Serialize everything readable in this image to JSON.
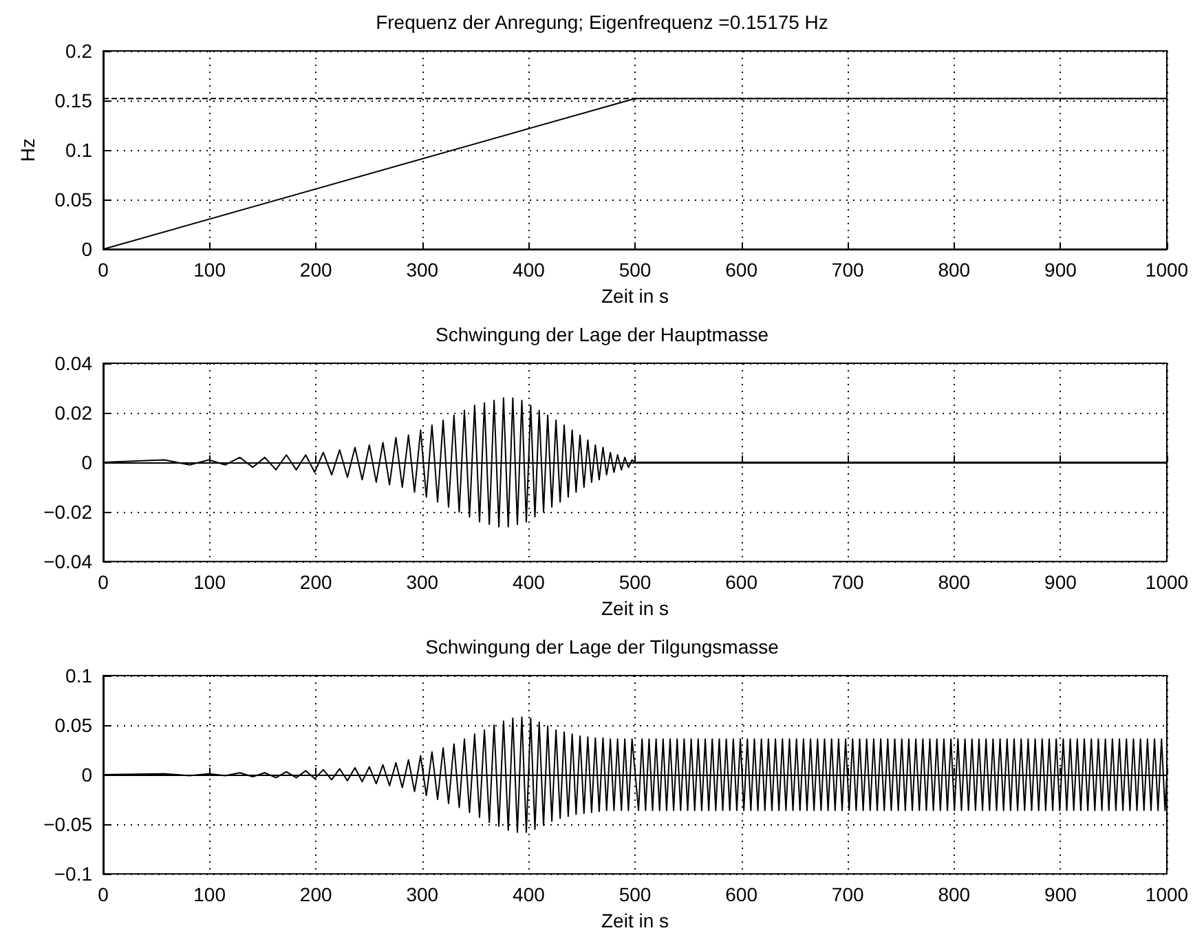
{
  "chart_data": [
    {
      "type": "line",
      "title": "Frequenz der Anregung; Eigenfrequenz =0.15175 Hz",
      "xlabel": "Zeit in s",
      "ylabel": "Hz",
      "xlim": [
        0,
        1000
      ],
      "xticks": [
        0,
        100,
        200,
        300,
        400,
        500,
        600,
        700,
        800,
        900,
        1000
      ],
      "ylim": [
        0,
        0.2
      ],
      "yticks": [
        0,
        0.05,
        0.1,
        0.15,
        0.2
      ],
      "grid": true,
      "marker": "none",
      "ref_lines": [
        {
          "axis": "y",
          "value": 0.152,
          "line_style": "dashed",
          "color": "#000000"
        }
      ],
      "series": [
        {
          "color": "#000000",
          "x": [
            0,
            500,
            1000
          ],
          "values": [
            0,
            0.152,
            0.152
          ]
        }
      ]
    },
    {
      "type": "line",
      "title": "Schwingung der Lage der Hauptmasse",
      "xlabel": "Zeit in s",
      "xlim": [
        0,
        1000
      ],
      "xticks": [
        0,
        100,
        200,
        300,
        400,
        500,
        600,
        700,
        800,
        900,
        1000
      ],
      "ylim": [
        -0.04,
        0.04
      ],
      "yticks": [
        {
          "value": -0.04,
          "label": "−0.04"
        },
        {
          "value": -0.02,
          "label": "−0.02"
        },
        0,
        0.02,
        0.04
      ],
      "grid": true,
      "marker": "none",
      "series": [
        {
          "color": "#000000",
          "x": [
            0,
            57.4,
            81.2,
            99.4,
            114.8,
            128.4,
            140.6,
            151.9,
            162.4,
            172.2,
            181.5,
            190.4,
            198.8,
            206.9,
            214.8,
            222.3,
            229.6,
            236.7,
            243.5,
            250.2,
            256.7,
            263,
            269.2,
            275.2,
            281.2,
            287,
            292.7,
            298.4,
            303.8,
            309.1,
            314.4,
            319.6,
            324.7,
            329.8,
            334.7,
            339.6,
            344.4,
            349.2,
            353.8,
            358.4,
            363,
            367.5,
            372,
            376.4,
            380.8,
            385.1,
            389.4,
            393.6,
            397.8,
            401.9,
            405.9,
            409.9,
            414,
            417.9,
            421.8,
            425.7,
            429.6,
            433.4,
            437.2,
            440.9,
            444.6,
            448.3,
            452,
            455.6,
            459.2,
            462.7,
            466.3,
            469.9,
            473.3,
            476.8,
            480.2,
            483.6,
            487.2,
            490.4,
            493.8,
            497.2,
            500,
            1000
          ],
          "values": [
            0,
            0.001,
            -0.001,
            0.001,
            -0.001,
            0.002,
            -0.002,
            0.002,
            -0.003,
            0.003,
            -0.003,
            0.003,
            -0.004,
            0.004,
            -0.005,
            0.005,
            -0.006,
            0.006,
            -0.007,
            0.007,
            -0.008,
            0.008,
            -0.009,
            0.01,
            -0.01,
            0.011,
            -0.012,
            0.013,
            -0.014,
            0.015,
            -0.016,
            0.017,
            -0.018,
            0.019,
            -0.02,
            0.021,
            -0.022,
            0.023,
            -0.024,
            0.024,
            -0.025,
            0.025,
            -0.026,
            0.026,
            -0.026,
            0.026,
            -0.025,
            0.025,
            -0.024,
            0.023,
            -0.022,
            0.021,
            -0.02,
            0.019,
            -0.018,
            0.017,
            -0.016,
            0.015,
            -0.014,
            0.013,
            -0.012,
            0.011,
            -0.01,
            0.009,
            -0.008,
            0.007,
            -0.007,
            0.006,
            -0.005,
            0.004,
            -0.004,
            0.003,
            -0.003,
            0.002,
            -0.002,
            0.001,
            0,
            0
          ]
        }
      ]
    },
    {
      "type": "line",
      "title": "Schwingung der Lage der Tilgungsmasse",
      "xlabel": "Zeit in s",
      "xlim": [
        0,
        1000
      ],
      "xticks": [
        0,
        100,
        200,
        300,
        400,
        500,
        600,
        700,
        800,
        900,
        1000
      ],
      "ylim": [
        -0.1,
        0.1
      ],
      "yticks": [
        {
          "value": -0.1,
          "label": "−0.1"
        },
        {
          "value": -0.05,
          "label": "−0.05"
        },
        0,
        0.05,
        0.1
      ],
      "grid": true,
      "marker": "none",
      "series": [
        {
          "color": "#000000",
          "x": [
            0,
            57.4,
            81.2,
            99.4,
            114.8,
            128.4,
            140.6,
            151.9,
            162.4,
            172.2,
            181.5,
            190.4,
            198.8,
            206.9,
            214.8,
            222.3,
            229.6,
            236.7,
            243.5,
            250.2,
            256.7,
            263,
            269.2,
            275.2,
            281.2,
            287,
            292.7,
            298.4,
            303.8,
            309.1,
            314.4,
            319.6,
            324.7,
            329.8,
            334.7,
            339.6,
            344.4,
            349.2,
            353.8,
            358.4,
            363,
            367.5,
            372,
            376.4,
            380.8,
            385.1,
            389.4,
            393.6,
            397.8,
            401.9,
            405.9,
            409.9,
            414,
            417.9,
            421.8,
            425.7,
            429.6,
            433.4,
            437.2,
            440.9,
            444.6,
            448.3,
            452,
            455.6,
            459.2,
            462.7,
            466.3,
            469.9,
            473.3,
            476.8,
            480.2,
            483.6,
            487.2,
            490.4,
            493.8,
            497.2,
            503.3,
            506.6,
            509.9,
            513.2,
            516.5,
            519.8,
            523.1,
            526.4,
            529.7,
            533,
            536.3,
            539.6,
            542.9,
            546.2,
            549.5,
            552.8,
            556.1,
            559.4,
            562.7,
            566,
            569.3,
            572.6,
            575.9,
            579.2,
            582.5,
            585.8,
            589.1,
            592.4,
            595.7,
            599,
            602.3,
            605.6,
            608.9,
            612.2,
            615.5,
            618.8,
            622.1,
            625.4,
            628.7,
            632,
            635.3,
            638.6,
            641.9,
            645.2,
            648.5,
            651.8,
            655.1,
            658.4,
            661.7,
            665,
            668.3,
            671.6,
            674.9,
            678.2,
            681.5,
            684.8,
            688.1,
            691.4,
            694.7,
            698,
            701.3,
            704.6,
            707.9,
            711.2,
            714.5,
            717.8,
            721.1,
            724.4,
            727.7,
            731,
            734.3,
            737.6,
            740.9,
            744.2,
            747.5,
            750.8,
            754.1,
            757.4,
            760.7,
            764,
            767.3,
            770.6,
            773.9,
            777.2,
            780.5,
            783.8,
            787.1,
            790.4,
            793.7,
            797,
            800.3,
            803.6,
            806.9,
            810.2,
            813.5,
            816.8,
            820.1,
            823.4,
            826.7,
            830,
            833.3,
            836.6,
            839.9,
            843.2,
            846.5,
            849.8,
            853.1,
            856.4,
            859.7,
            863,
            866.3,
            869.6,
            872.9,
            876.2,
            879.5,
            882.8,
            886.1,
            889.4,
            892.7,
            896,
            899.3,
            902.6,
            905.9,
            909.2,
            912.5,
            915.8,
            919.1,
            922.4,
            925.7,
            929,
            932.3,
            935.6,
            938.9,
            942.2,
            945.5,
            948.8,
            952.1,
            955.4,
            958.7,
            962,
            965.3,
            968.6,
            971.9,
            975.2,
            978.5,
            981.8,
            985.1,
            988.4,
            991.7,
            995,
            998.3,
            1000
          ],
          "values": [
            0,
            0.001,
            -0.001,
            0.001,
            -0.001,
            0.002,
            -0.002,
            0.002,
            -0.003,
            0.003,
            -0.003,
            0.004,
            -0.004,
            0.005,
            -0.005,
            0.006,
            -0.006,
            0.007,
            -0.007,
            0.008,
            -0.009,
            0.01,
            -0.011,
            0.012,
            -0.013,
            0.015,
            -0.017,
            0.019,
            -0.021,
            0.023,
            -0.025,
            0.027,
            -0.029,
            0.031,
            -0.033,
            0.036,
            -0.038,
            0.041,
            -0.043,
            0.045,
            -0.048,
            0.05,
            -0.052,
            0.054,
            -0.056,
            0.057,
            -0.058,
            0.058,
            -0.058,
            0.057,
            -0.055,
            0.053,
            -0.051,
            0.049,
            -0.047,
            0.045,
            -0.044,
            0.043,
            -0.042,
            0.041,
            -0.04,
            0.039,
            -0.039,
            0.038,
            -0.038,
            0.037,
            -0.037,
            0.037,
            -0.036,
            0.036,
            -0.036,
            0.036,
            -0.036,
            0.036,
            -0.036,
            0.036,
            -0.036,
            0.036,
            -0.036,
            0.036,
            -0.036,
            0.036,
            -0.036,
            0.036,
            -0.036,
            0.036,
            -0.036,
            0.036,
            -0.036,
            0.036,
            -0.036,
            0.036,
            -0.036,
            0.036,
            -0.036,
            0.036,
            -0.036,
            0.036,
            -0.036,
            0.036,
            -0.036,
            0.036,
            -0.036,
            0.036,
            -0.036,
            0.036,
            -0.036,
            0.036,
            -0.036,
            0.036,
            -0.036,
            0.036,
            -0.036,
            0.036,
            -0.036,
            0.036,
            -0.036,
            0.036,
            -0.036,
            0.036,
            -0.036,
            0.036,
            -0.036,
            0.036,
            -0.036,
            0.036,
            -0.036,
            0.036,
            -0.036,
            0.036,
            -0.036,
            0.036,
            -0.036,
            0.036,
            -0.036,
            0.036,
            -0.036,
            0.036,
            -0.036,
            0.036,
            -0.036,
            0.036,
            -0.036,
            0.036,
            -0.036,
            0.036,
            -0.036,
            0.036,
            -0.036,
            0.036,
            -0.036,
            0.036,
            -0.036,
            0.036,
            -0.036,
            0.036,
            -0.036,
            0.036,
            -0.036,
            0.036,
            -0.036,
            0.036,
            -0.036,
            0.036,
            -0.036,
            0.036,
            -0.036,
            0.036,
            -0.036,
            0.036,
            -0.036,
            0.036,
            -0.036,
            0.036,
            -0.036,
            0.036,
            -0.036,
            0.036,
            -0.036,
            0.036,
            -0.036,
            0.036,
            -0.036,
            0.036,
            -0.036,
            0.036,
            -0.036,
            0.036,
            -0.036,
            0.036,
            -0.036,
            0.036,
            -0.036,
            0.036,
            -0.036,
            0.036,
            -0.036,
            0.036,
            -0.036,
            0.036,
            -0.036,
            0.036,
            -0.036,
            0.036,
            -0.036,
            0.036,
            -0.036,
            0.036,
            -0.036,
            0.036,
            -0.036,
            0.036,
            -0.036,
            0.036,
            -0.036,
            0.036,
            -0.036,
            0.036,
            -0.036,
            0.036,
            -0.036,
            0.036,
            -0.036,
            0.036,
            -0.036,
            0.036,
            -0.036,
            0
          ]
        }
      ]
    }
  ]
}
